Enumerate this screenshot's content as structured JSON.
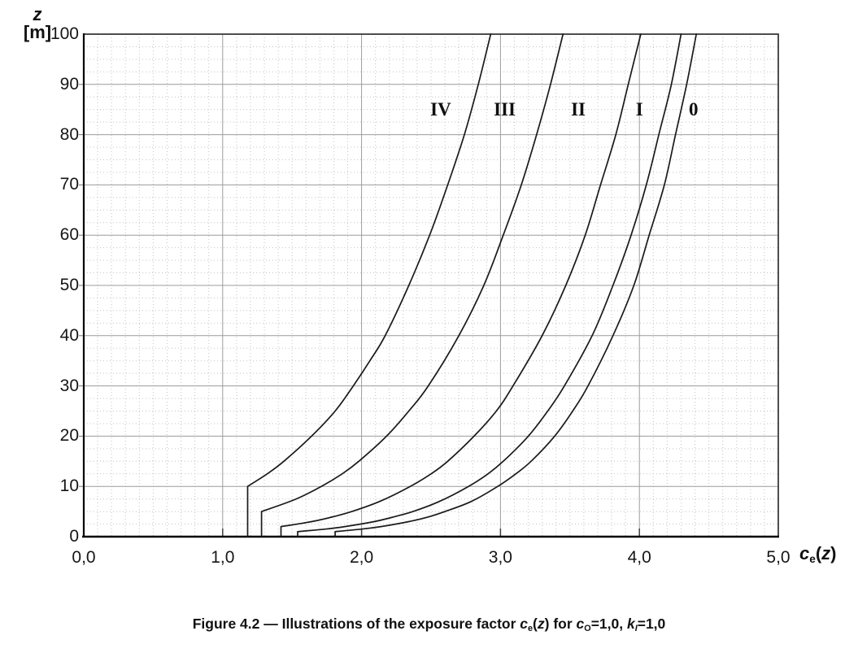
{
  "figure": {
    "y_axis_title": {
      "line1_parts": [
        {
          "t": "z",
          "s": "bi"
        }
      ],
      "line2_parts": [
        {
          "t": "[m]",
          "s": "b"
        }
      ]
    },
    "x_axis_title_parts": [
      {
        "t": "c",
        "s": "bi"
      },
      {
        "t": "e",
        "s": "bsub"
      },
      {
        "t": "(",
        "s": "b"
      },
      {
        "t": "z",
        "s": "bi"
      },
      {
        "t": ")",
        "s": "b"
      }
    ],
    "caption_parts": [
      {
        "t": "Figure 4.2 — Illustrations of the exposure factor ",
        "s": "b"
      },
      {
        "t": "c",
        "s": "bi"
      },
      {
        "t": "e",
        "s": "bsub"
      },
      {
        "t": "(",
        "s": "b"
      },
      {
        "t": "z",
        "s": "bi"
      },
      {
        "t": ")",
        "s": "b"
      },
      {
        "t": " for ",
        "s": "b"
      },
      {
        "t": "c",
        "s": "bi"
      },
      {
        "t": "O",
        "s": "bsub"
      },
      {
        "t": "=1,0, ",
        "s": "b"
      },
      {
        "t": "k",
        "s": "bi"
      },
      {
        "t": "I",
        "s": "bisub"
      },
      {
        "t": "=1,0",
        "s": "b"
      }
    ]
  },
  "colors": {
    "background": "#ffffff",
    "curve": "#1a1a1a",
    "grid_major": "#9c9c9c",
    "grid_minor": "#c4c4c4",
    "frame": "#3a3a3a",
    "axis_bottom": "#000000",
    "tick": "#444444",
    "text": "#111111"
  },
  "chart_data": {
    "type": "line",
    "title": "Figure 4.2 — Illustrations of the exposure factor ce(z) for cO=1,0, kI=1,0",
    "xlabel": "ce(z)",
    "ylabel": "z [m]",
    "xlim": [
      0,
      5
    ],
    "ylim": [
      0,
      100
    ],
    "x_tick_values": [
      0,
      1,
      2,
      3,
      4,
      5
    ],
    "x_tick_labels": [
      "0,0",
      "1,0",
      "2,0",
      "3,0",
      "4,0",
      "5,0"
    ],
    "y_tick_values": [
      0,
      10,
      20,
      30,
      40,
      50,
      60,
      70,
      80,
      90,
      100
    ],
    "y_tick_labels": [
      "0",
      "10",
      "20",
      "30",
      "40",
      "50",
      "60",
      "70",
      "80",
      "90",
      "100"
    ],
    "x_minor_step": 0.1,
    "y_minor_step": 2.5,
    "grid": true,
    "legend_position": "inline-curve-labels",
    "point_format": "[ce_value, z_metres]",
    "series": [
      {
        "name": "0",
        "label_at": {
          "x": 4.39,
          "z": 85
        },
        "points": [
          [
            1.81,
            0
          ],
          [
            1.81,
            1
          ],
          [
            2.0,
            1.5
          ],
          [
            2.14,
            2
          ],
          [
            2.34,
            3
          ],
          [
            2.49,
            4
          ],
          [
            2.6,
            5
          ],
          [
            2.79,
            7
          ],
          [
            2.98,
            10
          ],
          [
            3.11,
            12.5
          ],
          [
            3.22,
            15
          ],
          [
            3.39,
            20
          ],
          [
            3.52,
            25
          ],
          [
            3.63,
            30
          ],
          [
            3.81,
            40
          ],
          [
            3.96,
            50
          ],
          [
            4.07,
            60
          ],
          [
            4.18,
            70
          ],
          [
            4.26,
            80
          ],
          [
            4.34,
            90
          ],
          [
            4.41,
            100
          ]
        ]
      },
      {
        "name": "I",
        "label_at": {
          "x": 4.0,
          "z": 85
        },
        "points": [
          [
            1.54,
            0
          ],
          [
            1.54,
            1
          ],
          [
            1.74,
            1.5
          ],
          [
            1.88,
            2
          ],
          [
            2.09,
            3
          ],
          [
            2.24,
            4
          ],
          [
            2.37,
            5
          ],
          [
            2.56,
            7
          ],
          [
            2.77,
            10
          ],
          [
            2.91,
            12.5
          ],
          [
            3.02,
            15
          ],
          [
            3.2,
            20
          ],
          [
            3.34,
            25
          ],
          [
            3.46,
            30
          ],
          [
            3.66,
            40
          ],
          [
            3.81,
            50
          ],
          [
            3.94,
            60
          ],
          [
            4.05,
            70
          ],
          [
            4.14,
            80
          ],
          [
            4.23,
            90
          ],
          [
            4.3,
            100
          ]
        ]
      },
      {
        "name": "II",
        "label_at": {
          "x": 3.56,
          "z": 85
        },
        "points": [
          [
            1.42,
            0
          ],
          [
            1.42,
            2
          ],
          [
            1.64,
            3
          ],
          [
            1.8,
            4
          ],
          [
            1.93,
            5
          ],
          [
            2.13,
            7
          ],
          [
            2.35,
            10
          ],
          [
            2.5,
            12.5
          ],
          [
            2.62,
            15
          ],
          [
            2.81,
            20
          ],
          [
            2.97,
            25
          ],
          [
            3.09,
            30
          ],
          [
            3.3,
            40
          ],
          [
            3.47,
            50
          ],
          [
            3.61,
            60
          ],
          [
            3.72,
            70
          ],
          [
            3.83,
            80
          ],
          [
            3.92,
            90
          ],
          [
            4.01,
            100
          ]
        ]
      },
      {
        "name": "III",
        "label_at": {
          "x": 3.03,
          "z": 85
        },
        "points": [
          [
            1.28,
            0
          ],
          [
            1.28,
            5
          ],
          [
            1.53,
            7.5
          ],
          [
            1.71,
            10
          ],
          [
            1.86,
            12.5
          ],
          [
            1.98,
            15
          ],
          [
            2.18,
            20
          ],
          [
            2.34,
            25
          ],
          [
            2.48,
            30
          ],
          [
            2.7,
            40
          ],
          [
            2.88,
            50
          ],
          [
            3.02,
            60
          ],
          [
            3.15,
            70
          ],
          [
            3.26,
            80
          ],
          [
            3.36,
            90
          ],
          [
            3.45,
            100
          ]
        ]
      },
      {
        "name": "IV",
        "label_at": {
          "x": 2.57,
          "z": 85
        },
        "points": [
          [
            1.18,
            0
          ],
          [
            1.18,
            10
          ],
          [
            1.32,
            12.5
          ],
          [
            1.44,
            15
          ],
          [
            1.64,
            20
          ],
          [
            1.81,
            25
          ],
          [
            1.94,
            30
          ],
          [
            2.06,
            35
          ],
          [
            2.17,
            40
          ],
          [
            2.34,
            50
          ],
          [
            2.49,
            60
          ],
          [
            2.62,
            70
          ],
          [
            2.74,
            80
          ],
          [
            2.84,
            90
          ],
          [
            2.93,
            100
          ]
        ]
      }
    ]
  }
}
